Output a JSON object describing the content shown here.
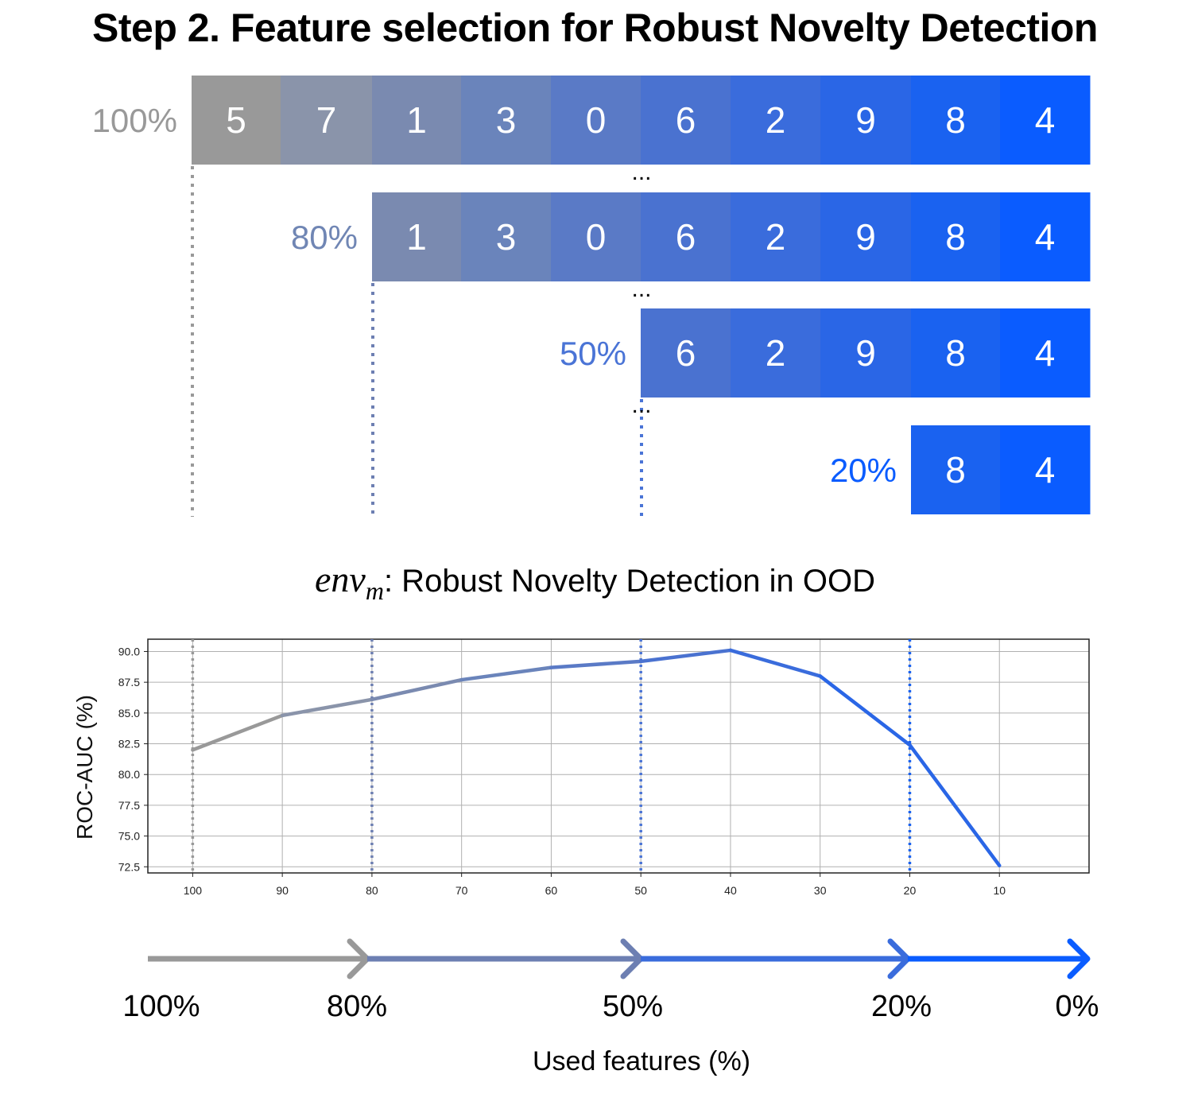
{
  "title": "Step 2. Feature selection for Robust Novelty Detection",
  "colors": {
    "gray": "#999999",
    "slate": "#7086b4",
    "mid": "#4a74d6",
    "blue": "#0a5cff",
    "cell_gradient": [
      "#999999",
      "#8a94aa",
      "#7a8ab0",
      "#6a84bb",
      "#5a7ac6",
      "#4a72d0",
      "#3a6cdc",
      "#2a66e6",
      "#1a62f0",
      "#0a5cff"
    ]
  },
  "feature_rows": [
    {
      "label": "100%",
      "cells": [
        "5",
        "7",
        "1",
        "3",
        "0",
        "6",
        "2",
        "9",
        "8",
        "4"
      ]
    },
    {
      "label": "80%",
      "cells": [
        "1",
        "3",
        "0",
        "6",
        "2",
        "9",
        "8",
        "4"
      ]
    },
    {
      "label": "50%",
      "cells": [
        "6",
        "2",
        "9",
        "8",
        "4"
      ]
    },
    {
      "label": "20%",
      "cells": [
        "8",
        "4"
      ]
    }
  ],
  "ellipsis": "...",
  "chart_title_math": "env",
  "chart_title_sub": "m",
  "chart_title_text": ": Robust Novelty Detection in OOD",
  "chart_data": {
    "type": "line",
    "ylabel": "ROC-AUC (%)",
    "x": [
      100,
      90,
      80,
      70,
      60,
      50,
      40,
      30,
      20,
      10
    ],
    "x_tick_labels": [
      "100",
      "90",
      "80",
      "70",
      "60",
      "50",
      "40",
      "30",
      "20",
      "10"
    ],
    "y": [
      82.0,
      84.8,
      86.1,
      87.7,
      88.7,
      89.2,
      90.1,
      88.0,
      82.4,
      72.6
    ],
    "y_ticks": [
      "90.0",
      "87.5",
      "85.0",
      "82.5",
      "80.0",
      "77.5",
      "75.0",
      "72.5"
    ],
    "ylim": [
      72.0,
      91.0
    ],
    "xlim_index": [
      -0.5,
      10.0
    ],
    "grid": true,
    "vertical_markers": [
      100,
      80,
      50,
      20
    ]
  },
  "arrow_labels": [
    "100%",
    "80%",
    "50%",
    "20%",
    "0%"
  ],
  "xlabel": "Used features (%)"
}
